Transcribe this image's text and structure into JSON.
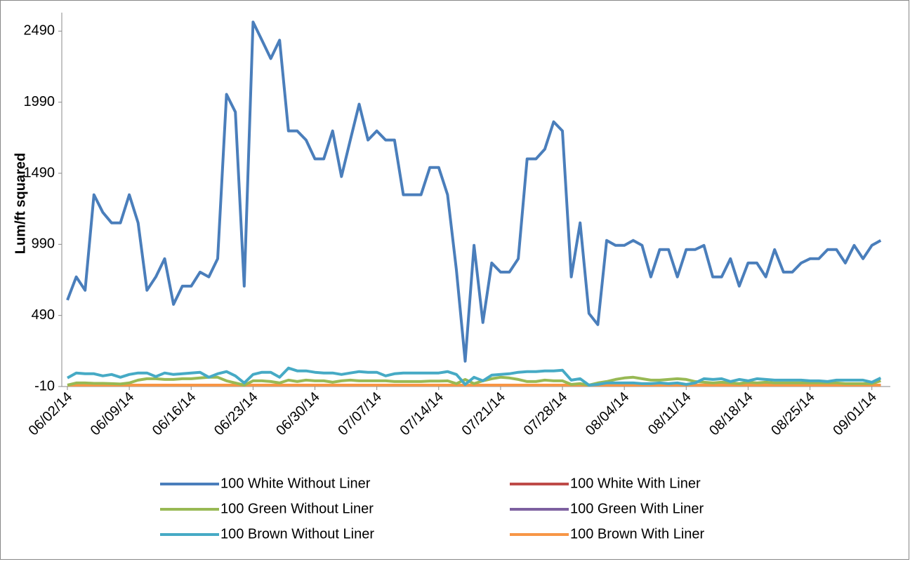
{
  "chart_data": {
    "type": "line",
    "y_title": "Lum/ft squared",
    "ylim": [
      -10,
      2620
    ],
    "yticks": [
      -10,
      490,
      990,
      1490,
      1990,
      2490
    ],
    "categories": [
      "06/02/14",
      null,
      null,
      null,
      null,
      null,
      null,
      "06/09/14",
      null,
      null,
      null,
      null,
      null,
      null,
      "06/16/14",
      null,
      null,
      null,
      null,
      null,
      null,
      "06/23/14",
      null,
      null,
      null,
      null,
      null,
      null,
      "06/30/14",
      null,
      null,
      null,
      null,
      null,
      null,
      "07/07/14",
      null,
      null,
      null,
      null,
      null,
      null,
      "07/14/14",
      null,
      null,
      null,
      null,
      null,
      null,
      "07/21/14",
      null,
      null,
      null,
      null,
      null,
      null,
      "07/28/14",
      null,
      null,
      null,
      null,
      null,
      null,
      "08/04/14",
      null,
      null,
      null,
      null,
      null,
      null,
      "08/11/14",
      null,
      null,
      null,
      null,
      null,
      null,
      "08/18/14",
      null,
      null,
      null,
      null,
      null,
      null,
      "08/25/14",
      null,
      null,
      null,
      null,
      null,
      null,
      "09/01/14",
      null
    ],
    "series": [
      {
        "name": "100 White Without Liner",
        "color": "#4a7ebb",
        "values": [
          598,
          761,
          667,
          1339,
          1215,
          1141,
          1141,
          1339,
          1141,
          667,
          761,
          889,
          568,
          696,
          696,
          795,
          761,
          889,
          2045,
          1921,
          696,
          2554,
          2426,
          2297,
          2426,
          1788,
          1788,
          1724,
          1591,
          1591,
          1788,
          1467,
          1724,
          1976,
          1724,
          1788,
          1724,
          1724,
          1339,
          1339,
          1339,
          1531,
          1531,
          1339,
          810,
          168,
          983,
          440,
          859,
          795,
          795,
          889,
          1591,
          1591,
          1660,
          1852,
          1788,
          761,
          1141,
          504,
          425,
          1018,
          983,
          983,
          1018,
          983,
          761,
          953,
          953,
          761,
          953,
          953,
          983,
          761,
          761,
          889,
          696,
          859,
          859,
          761,
          953,
          795,
          795,
          859,
          889,
          889,
          953,
          953,
          859,
          983,
          889,
          983,
          1018
        ]
      },
      {
        "name": "100 White With Liner",
        "color": "#be4b48",
        "values": [
          0,
          0,
          0,
          0,
          0,
          0,
          0,
          0,
          0,
          0,
          0,
          0,
          0,
          0,
          0,
          0,
          0,
          0,
          0,
          0,
          0,
          0,
          0,
          0,
          0,
          0,
          0,
          0,
          0,
          0,
          0,
          0,
          0,
          0,
          0,
          0,
          0,
          0,
          0,
          0,
          0,
          0,
          0,
          0,
          0,
          0,
          0,
          0,
          0,
          0,
          0,
          0,
          0,
          0,
          0,
          0,
          0,
          0,
          0,
          0,
          0,
          0,
          0,
          0,
          0,
          0,
          0,
          0,
          0,
          0,
          0,
          0,
          0,
          0,
          0,
          0,
          0,
          0,
          0,
          0,
          0,
          0,
          0,
          0,
          0,
          0,
          0,
          0,
          0,
          0,
          0,
          0,
          0
        ]
      },
      {
        "name": "100 Green Without Liner",
        "color": "#98b954",
        "values": [
          0,
          15,
          15,
          12,
          12,
          10,
          8,
          15,
          35,
          45,
          45,
          40,
          40,
          45,
          45,
          50,
          55,
          55,
          30,
          15,
          0,
          30,
          30,
          25,
          15,
          35,
          25,
          35,
          30,
          30,
          20,
          30,
          35,
          30,
          30,
          30,
          30,
          25,
          25,
          25,
          25,
          28,
          28,
          30,
          10,
          40,
          10,
          30,
          45,
          55,
          50,
          40,
          25,
          25,
          35,
          30,
          30,
          5,
          10,
          0,
          15,
          25,
          40,
          50,
          55,
          45,
          35,
          35,
          40,
          45,
          40,
          25,
          20,
          15,
          20,
          15,
          10,
          20,
          15,
          20,
          15,
          15,
          15,
          15,
          15,
          15,
          15,
          15,
          10,
          10,
          10,
          10,
          30
        ]
      },
      {
        "name": "100 Green With Liner",
        "color": "#7d60a0",
        "values": [
          0,
          0,
          0,
          0,
          0,
          0,
          0,
          0,
          0,
          0,
          0,
          0,
          0,
          0,
          0,
          0,
          0,
          0,
          0,
          0,
          0,
          0,
          0,
          0,
          0,
          0,
          0,
          0,
          0,
          0,
          0,
          0,
          0,
          0,
          0,
          0,
          0,
          0,
          0,
          0,
          0,
          0,
          0,
          0,
          0,
          0,
          0,
          0,
          0,
          0,
          0,
          0,
          0,
          0,
          0,
          0,
          0,
          0,
          0,
          0,
          0,
          0,
          0,
          0,
          0,
          0,
          0,
          0,
          0,
          0,
          0,
          0,
          0,
          0,
          0,
          0,
          0,
          0,
          0,
          0,
          0,
          0,
          0,
          0,
          0,
          0,
          0,
          0,
          0,
          0,
          0,
          0,
          0
        ]
      },
      {
        "name": "100 Brown Without Liner",
        "color": "#46aac5",
        "values": [
          50,
          85,
          80,
          80,
          65,
          75,
          55,
          75,
          85,
          85,
          60,
          85,
          75,
          80,
          85,
          90,
          55,
          80,
          95,
          65,
          15,
          75,
          90,
          90,
          55,
          120,
          100,
          100,
          90,
          85,
          85,
          75,
          85,
          95,
          90,
          90,
          65,
          80,
          85,
          85,
          85,
          85,
          85,
          95,
          75,
          5,
          55,
          30,
          70,
          75,
          80,
          90,
          95,
          95,
          100,
          100,
          105,
          35,
          45,
          0,
          5,
          15,
          15,
          15,
          15,
          10,
          10,
          15,
          10,
          15,
          5,
          15,
          45,
          40,
          45,
          25,
          40,
          30,
          45,
          40,
          35,
          35,
          35,
          35,
          30,
          30,
          25,
          35,
          35,
          35,
          35,
          20,
          50
        ]
      },
      {
        "name": "100 Brown With Liner",
        "color": "#f79646",
        "values": [
          0,
          0,
          0,
          0,
          0,
          0,
          0,
          0,
          0,
          0,
          0,
          0,
          0,
          0,
          0,
          0,
          0,
          0,
          0,
          0,
          0,
          0,
          0,
          0,
          0,
          0,
          0,
          0,
          0,
          0,
          0,
          0,
          0,
          0,
          0,
          0,
          0,
          0,
          0,
          0,
          0,
          0,
          0,
          0,
          0,
          0,
          0,
          0,
          0,
          0,
          0,
          0,
          0,
          0,
          0,
          0,
          0,
          0,
          0,
          0,
          0,
          0,
          0,
          0,
          0,
          0,
          0,
          0,
          0,
          0,
          0,
          0,
          0,
          0,
          0,
          0,
          0,
          0,
          0,
          0,
          0,
          0,
          0,
          0,
          0,
          0,
          0,
          0,
          0,
          0,
          0,
          0,
          0
        ]
      }
    ]
  }
}
